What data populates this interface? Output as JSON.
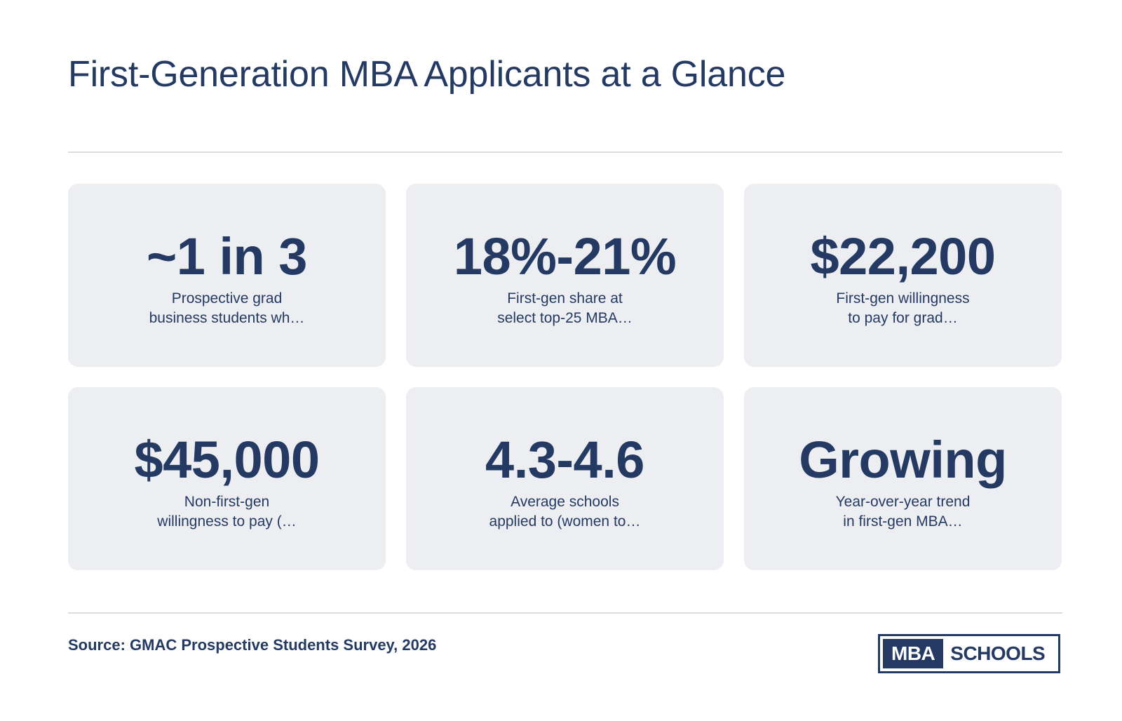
{
  "title": "First-Generation MBA Applicants at a Glance",
  "stats": [
    {
      "value": "~1 in 3",
      "desc_line1": "Prospective grad",
      "desc_line2": "business students wh…"
    },
    {
      "value": "18%-21%",
      "desc_line1": "First-gen share at",
      "desc_line2": "select top-25 MBA…"
    },
    {
      "value": "$22,200",
      "desc_line1": "First-gen willingness",
      "desc_line2": "to pay for grad…"
    },
    {
      "value": "$45,000",
      "desc_line1": "Non-first-gen",
      "desc_line2": "willingness to pay (…"
    },
    {
      "value": "4.3-4.6",
      "desc_line1": "Average schools",
      "desc_line2": "applied to (women to…"
    },
    {
      "value": "Growing",
      "desc_line1": "Year-over-year trend",
      "desc_line2": "in first-gen MBA…"
    }
  ],
  "source": "Source: GMAC Prospective Students Survey, 2026",
  "logo": {
    "left": "MBA",
    "right": "SCHOOLS"
  },
  "colors": {
    "primary": "#243a63",
    "card_bg": "#edeef2",
    "rule": "#dcdde1"
  }
}
